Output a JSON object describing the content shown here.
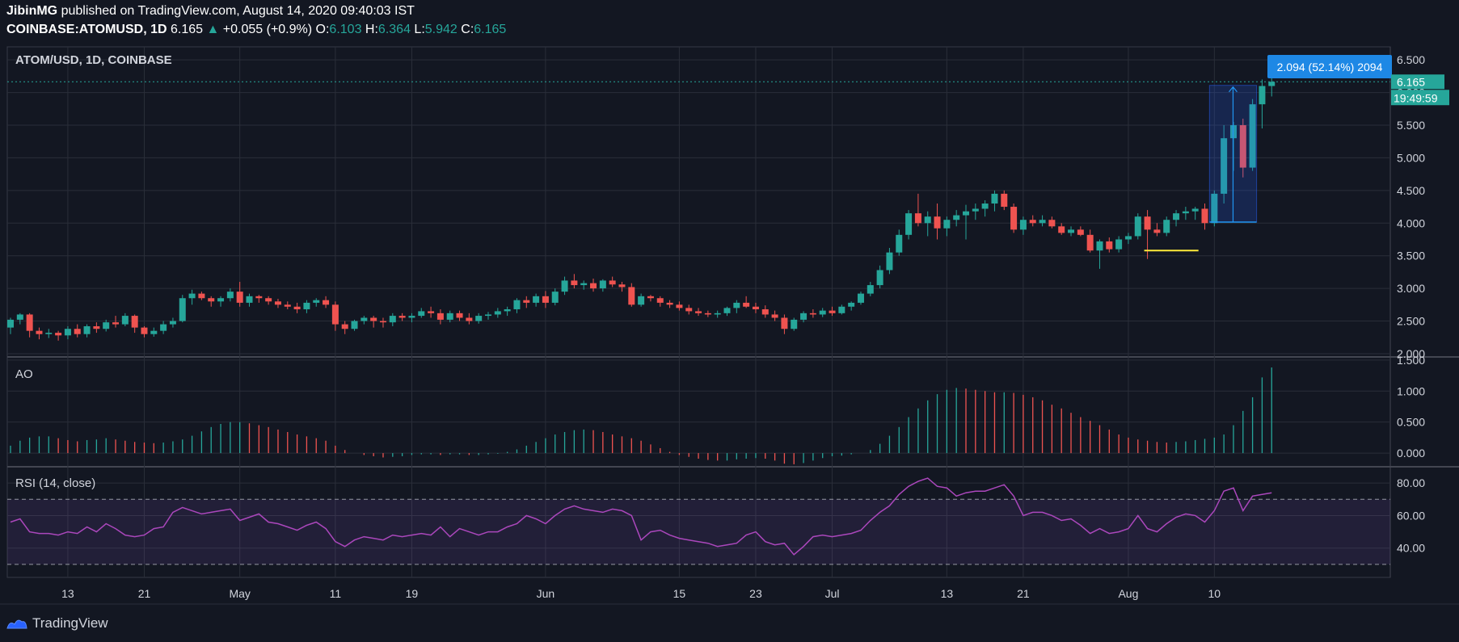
{
  "header": {
    "author": "JibinMG",
    "published": "published on TradingView.com, August 14, 2020 09:40:03 IST",
    "symbol": "COINBASE:ATOMUSD, 1D",
    "last": "6.165",
    "change": "+0.055 (+0.9%)",
    "o_label": "O:",
    "o": "6.103",
    "h_label": "H:",
    "h": "6.364",
    "l_label": "L:",
    "l": "5.942",
    "c_label": "C:",
    "c": "6.165"
  },
  "panes": {
    "price_title": "ATOM/USD, 1D, COINBASE",
    "ao_title": "AO",
    "rsi_title": "RSI (14, close)"
  },
  "footer": {
    "brand": "TradingView"
  },
  "colors": {
    "bg": "#131722",
    "grid": "#2a2e39",
    "up": "#26a69a",
    "down": "#ef5350",
    "rsi": "#ab47bc",
    "measure": "#2962ff"
  },
  "chart_data": {
    "type": "candlestick",
    "x_tick_labels": [
      {
        "label": "13",
        "i": 6
      },
      {
        "label": "21",
        "i": 14
      },
      {
        "label": "May",
        "i": 24
      },
      {
        "label": "11",
        "i": 34
      },
      {
        "label": "19",
        "i": 42
      },
      {
        "label": "Jun",
        "i": 56
      },
      {
        "label": "15",
        "i": 70
      },
      {
        "label": "23",
        "i": 78
      },
      {
        "label": "Jul",
        "i": 86
      },
      {
        "label": "13",
        "i": 98
      },
      {
        "label": "21",
        "i": 106
      },
      {
        "label": "Aug",
        "i": 117
      },
      {
        "label": "10",
        "i": 126
      }
    ],
    "price_axis": {
      "ylim": [
        1.95,
        6.7
      ],
      "ticks": [
        "2.000",
        "2.500",
        "3.000",
        "3.500",
        "4.000",
        "4.500",
        "5.000",
        "5.500",
        "6.000",
        "6.500"
      ]
    },
    "last_price_label": "6.165",
    "countdown_label": "19:49:59",
    "ohlc": [
      [
        2.4,
        2.55,
        2.3,
        2.52
      ],
      [
        2.52,
        2.62,
        2.45,
        2.6
      ],
      [
        2.6,
        2.62,
        2.25,
        2.35
      ],
      [
        2.35,
        2.4,
        2.22,
        2.3
      ],
      [
        2.3,
        2.38,
        2.24,
        2.32
      ],
      [
        2.32,
        2.35,
        2.2,
        2.28
      ],
      [
        2.28,
        2.42,
        2.22,
        2.38
      ],
      [
        2.38,
        2.45,
        2.25,
        2.3
      ],
      [
        2.3,
        2.45,
        2.25,
        2.42
      ],
      [
        2.42,
        2.48,
        2.32,
        2.38
      ],
      [
        2.38,
        2.52,
        2.34,
        2.48
      ],
      [
        2.48,
        2.58,
        2.4,
        2.45
      ],
      [
        2.45,
        2.62,
        2.42,
        2.58
      ],
      [
        2.58,
        2.6,
        2.32,
        2.4
      ],
      [
        2.4,
        2.42,
        2.25,
        2.3
      ],
      [
        2.3,
        2.4,
        2.26,
        2.35
      ],
      [
        2.35,
        2.5,
        2.3,
        2.45
      ],
      [
        2.45,
        2.55,
        2.4,
        2.5
      ],
      [
        2.5,
        2.9,
        2.48,
        2.85
      ],
      [
        2.85,
        2.98,
        2.75,
        2.92
      ],
      [
        2.92,
        2.95,
        2.82,
        2.85
      ],
      [
        2.85,
        2.88,
        2.72,
        2.8
      ],
      [
        2.8,
        2.88,
        2.72,
        2.85
      ],
      [
        2.85,
        3.0,
        2.8,
        2.95
      ],
      [
        2.95,
        3.1,
        2.72,
        2.78
      ],
      [
        2.78,
        2.92,
        2.72,
        2.88
      ],
      [
        2.88,
        2.9,
        2.78,
        2.85
      ],
      [
        2.85,
        2.88,
        2.75,
        2.8
      ],
      [
        2.8,
        2.84,
        2.7,
        2.75
      ],
      [
        2.75,
        2.8,
        2.68,
        2.72
      ],
      [
        2.72,
        2.78,
        2.62,
        2.68
      ],
      [
        2.68,
        2.82,
        2.62,
        2.78
      ],
      [
        2.78,
        2.85,
        2.72,
        2.82
      ],
      [
        2.82,
        2.88,
        2.7,
        2.75
      ],
      [
        2.75,
        2.8,
        2.35,
        2.45
      ],
      [
        2.45,
        2.5,
        2.3,
        2.38
      ],
      [
        2.38,
        2.52,
        2.35,
        2.5
      ],
      [
        2.5,
        2.58,
        2.45,
        2.55
      ],
      [
        2.55,
        2.58,
        2.4,
        2.5
      ],
      [
        2.5,
        2.55,
        2.4,
        2.48
      ],
      [
        2.48,
        2.62,
        2.42,
        2.58
      ],
      [
        2.58,
        2.62,
        2.5,
        2.55
      ],
      [
        2.55,
        2.62,
        2.48,
        2.58
      ],
      [
        2.58,
        2.7,
        2.55,
        2.65
      ],
      [
        2.65,
        2.72,
        2.55,
        2.62
      ],
      [
        2.62,
        2.68,
        2.45,
        2.52
      ],
      [
        2.52,
        2.66,
        2.48,
        2.62
      ],
      [
        2.62,
        2.66,
        2.5,
        2.55
      ],
      [
        2.55,
        2.62,
        2.45,
        2.5
      ],
      [
        2.5,
        2.62,
        2.46,
        2.58
      ],
      [
        2.58,
        2.64,
        2.52,
        2.6
      ],
      [
        2.6,
        2.7,
        2.55,
        2.65
      ],
      [
        2.65,
        2.72,
        2.58,
        2.68
      ],
      [
        2.68,
        2.85,
        2.62,
        2.82
      ],
      [
        2.82,
        2.88,
        2.7,
        2.78
      ],
      [
        2.78,
        2.92,
        2.72,
        2.88
      ],
      [
        2.88,
        2.96,
        2.7,
        2.78
      ],
      [
        2.78,
        3.0,
        2.74,
        2.95
      ],
      [
        2.95,
        3.18,
        2.9,
        3.12
      ],
      [
        3.12,
        3.22,
        3.0,
        3.05
      ],
      [
        3.05,
        3.12,
        2.98,
        3.08
      ],
      [
        3.08,
        3.15,
        2.95,
        3.0
      ],
      [
        3.0,
        3.14,
        2.95,
        3.12
      ],
      [
        3.12,
        3.18,
        3.02,
        3.06
      ],
      [
        3.06,
        3.1,
        2.95,
        3.02
      ],
      [
        3.02,
        3.08,
        2.72,
        2.75
      ],
      [
        2.75,
        2.92,
        2.72,
        2.88
      ],
      [
        2.88,
        2.9,
        2.8,
        2.85
      ],
      [
        2.85,
        2.88,
        2.72,
        2.78
      ],
      [
        2.78,
        2.82,
        2.7,
        2.75
      ],
      [
        2.75,
        2.8,
        2.66,
        2.7
      ],
      [
        2.7,
        2.75,
        2.6,
        2.65
      ],
      [
        2.65,
        2.7,
        2.58,
        2.62
      ],
      [
        2.62,
        2.66,
        2.56,
        2.6
      ],
      [
        2.6,
        2.66,
        2.55,
        2.62
      ],
      [
        2.62,
        2.72,
        2.58,
        2.7
      ],
      [
        2.7,
        2.82,
        2.62,
        2.78
      ],
      [
        2.78,
        2.88,
        2.7,
        2.72
      ],
      [
        2.72,
        2.78,
        2.62,
        2.68
      ],
      [
        2.68,
        2.74,
        2.55,
        2.6
      ],
      [
        2.6,
        2.66,
        2.5,
        2.55
      ],
      [
        2.55,
        2.6,
        2.3,
        2.38
      ],
      [
        2.38,
        2.55,
        2.35,
        2.52
      ],
      [
        2.52,
        2.65,
        2.48,
        2.62
      ],
      [
        2.62,
        2.68,
        2.55,
        2.6
      ],
      [
        2.6,
        2.7,
        2.56,
        2.66
      ],
      [
        2.66,
        2.72,
        2.58,
        2.62
      ],
      [
        2.62,
        2.75,
        2.6,
        2.72
      ],
      [
        2.72,
        2.8,
        2.66,
        2.78
      ],
      [
        2.78,
        2.95,
        2.75,
        2.92
      ],
      [
        2.92,
        3.1,
        2.88,
        3.05
      ],
      [
        3.05,
        3.35,
        3.0,
        3.28
      ],
      [
        3.28,
        3.62,
        3.22,
        3.55
      ],
      [
        3.55,
        3.9,
        3.5,
        3.82
      ],
      [
        3.82,
        4.2,
        3.75,
        4.15
      ],
      [
        4.15,
        4.45,
        3.95,
        4.0
      ],
      [
        4.0,
        4.18,
        3.8,
        4.1
      ],
      [
        4.1,
        4.3,
        3.75,
        3.92
      ],
      [
        3.92,
        4.1,
        3.8,
        4.05
      ],
      [
        4.05,
        4.2,
        3.95,
        4.12
      ],
      [
        4.12,
        4.28,
        3.75,
        4.18
      ],
      [
        4.18,
        4.3,
        4.05,
        4.22
      ],
      [
        4.22,
        4.35,
        4.1,
        4.3
      ],
      [
        4.3,
        4.5,
        4.18,
        4.45
      ],
      [
        4.45,
        4.5,
        4.2,
        4.25
      ],
      [
        4.25,
        4.3,
        3.85,
        3.9
      ],
      [
        3.9,
        4.1,
        3.82,
        4.05
      ],
      [
        4.05,
        4.12,
        3.95,
        4.0
      ],
      [
        4.0,
        4.12,
        3.95,
        4.05
      ],
      [
        4.05,
        4.1,
        3.92,
        3.95
      ],
      [
        3.95,
        4.0,
        3.82,
        3.85
      ],
      [
        3.85,
        3.95,
        3.8,
        3.9
      ],
      [
        3.9,
        3.95,
        3.8,
        3.82
      ],
      [
        3.82,
        3.9,
        3.55,
        3.58
      ],
      [
        3.58,
        3.75,
        3.3,
        3.72
      ],
      [
        3.72,
        3.78,
        3.55,
        3.6
      ],
      [
        3.6,
        3.8,
        3.55,
        3.75
      ],
      [
        3.75,
        3.85,
        3.68,
        3.8
      ],
      [
        3.8,
        4.15,
        3.75,
        4.1
      ],
      [
        4.1,
        4.2,
        3.45,
        3.9
      ],
      [
        3.9,
        4.0,
        3.8,
        3.85
      ],
      [
        3.85,
        4.1,
        3.8,
        4.05
      ],
      [
        4.05,
        4.2,
        3.95,
        4.15
      ],
      [
        4.15,
        4.25,
        4.05,
        4.18
      ],
      [
        4.18,
        4.25,
        4.05,
        4.22
      ],
      [
        4.22,
        4.3,
        3.9,
        4.0
      ],
      [
        4.0,
        4.5,
        3.95,
        4.45
      ],
      [
        4.45,
        5.5,
        4.3,
        5.3
      ],
      [
        5.3,
        5.55,
        4.8,
        5.5
      ],
      [
        5.5,
        5.6,
        4.7,
        4.85
      ],
      [
        4.85,
        5.9,
        4.8,
        5.82
      ],
      [
        5.82,
        6.2,
        5.45,
        6.1
      ],
      [
        6.1,
        6.36,
        5.94,
        6.165
      ]
    ],
    "support_line": {
      "from": 119,
      "to": 124,
      "price": 3.58
    },
    "measure": {
      "label": "2.094 (52.14%) 2094",
      "from_i": 126,
      "to_i": 130,
      "from_price": 4.016,
      "to_price": 6.11
    },
    "ao": {
      "ylim": [
        -0.22,
        1.55
      ],
      "ticks": [
        "0.000",
        "0.500",
        "1.000",
        "1.500"
      ],
      "values": [
        0.12,
        0.2,
        0.25,
        0.27,
        0.27,
        0.24,
        0.21,
        0.19,
        0.21,
        0.22,
        0.24,
        0.22,
        0.2,
        0.18,
        0.17,
        0.16,
        0.17,
        0.19,
        0.22,
        0.28,
        0.35,
        0.42,
        0.47,
        0.5,
        0.5,
        0.48,
        0.45,
        0.42,
        0.38,
        0.34,
        0.3,
        0.27,
        0.24,
        0.2,
        0.12,
        0.05,
        0.0,
        -0.03,
        -0.05,
        -0.07,
        -0.06,
        -0.05,
        -0.03,
        -0.02,
        -0.02,
        -0.03,
        -0.02,
        -0.02,
        -0.03,
        -0.03,
        -0.02,
        -0.01,
        0.02,
        0.06,
        0.12,
        0.18,
        0.24,
        0.3,
        0.34,
        0.37,
        0.38,
        0.37,
        0.34,
        0.3,
        0.27,
        0.24,
        0.2,
        0.14,
        0.08,
        0.02,
        -0.03,
        -0.06,
        -0.09,
        -0.11,
        -0.12,
        -0.12,
        -0.1,
        -0.09,
        -0.08,
        -0.09,
        -0.12,
        -0.17,
        -0.18,
        -0.16,
        -0.12,
        -0.08,
        -0.05,
        -0.04,
        -0.02,
        0.0,
        0.05,
        0.15,
        0.28,
        0.42,
        0.58,
        0.72,
        0.85,
        0.95,
        1.02,
        1.05,
        1.04,
        1.02,
        1.0,
        0.98,
        0.98,
        0.97,
        0.94,
        0.9,
        0.85,
        0.78,
        0.72,
        0.65,
        0.58,
        0.52,
        0.45,
        0.38,
        0.3,
        0.25,
        0.22,
        0.2,
        0.18,
        0.17,
        0.18,
        0.19,
        0.21,
        0.23,
        0.25,
        0.3,
        0.45,
        0.68,
        0.9,
        1.22,
        1.38
      ]
    },
    "rsi": {
      "ylim": [
        22,
        90
      ],
      "ticks": [
        "40.00",
        "60.00",
        "80.00"
      ],
      "bands": [
        30,
        70
      ],
      "values": [
        56,
        58,
        50,
        49,
        49,
        48,
        50,
        49,
        53,
        50,
        55,
        52,
        48,
        47,
        48,
        52,
        53,
        62,
        65,
        63,
        61,
        62,
        63,
        64,
        57,
        59,
        61,
        56,
        55,
        53,
        51,
        54,
        56,
        52,
        44,
        41,
        45,
        47,
        46,
        45,
        48,
        47,
        48,
        49,
        48,
        53,
        47,
        52,
        50,
        48,
        50,
        50,
        53,
        55,
        60,
        58,
        55,
        60,
        64,
        66,
        64,
        63,
        62,
        64,
        63,
        60,
        45,
        50,
        51,
        48,
        46,
        45,
        44,
        43,
        41,
        42,
        43,
        48,
        50,
        44,
        42,
        43,
        36,
        41,
        47,
        48,
        47,
        48,
        49,
        51,
        57,
        62,
        66,
        73,
        78,
        81,
        83,
        78,
        77,
        72,
        74,
        75,
        75,
        77,
        79,
        72,
        60,
        62,
        62,
        60,
        57,
        58,
        54,
        49,
        52,
        49,
        50,
        52,
        60,
        52,
        50,
        55,
        59,
        61,
        60,
        56,
        63,
        75,
        77,
        63,
        72,
        73,
        74
      ]
    }
  }
}
